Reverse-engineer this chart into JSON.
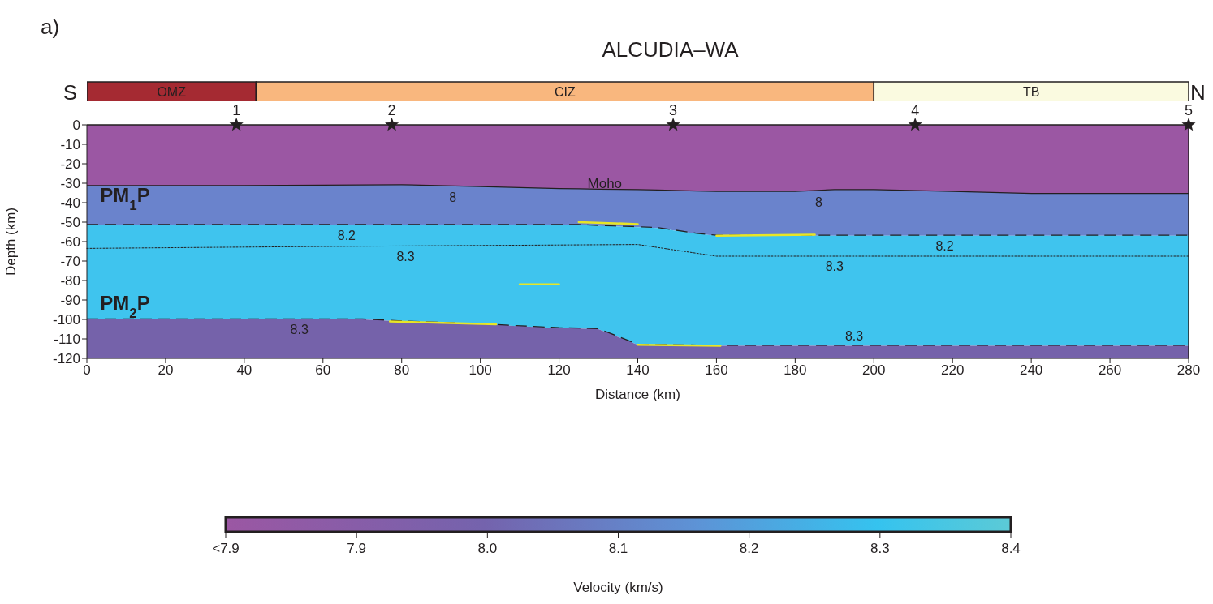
{
  "chart_data": [
    {
      "type": "bar",
      "orientation": "horizontal",
      "stacked": true,
      "title": "ALCUDIA–WA",
      "categories": [
        null
      ],
      "xlim": [
        0,
        280
      ],
      "tick_labels": false,
      "series": [
        {
          "name": "OMZ",
          "color": "#a52a32",
          "values": [
            43
          ]
        },
        {
          "name": "CIZ",
          "color": "#f9b77e",
          "values": [
            157
          ]
        },
        {
          "name": "TB",
          "color": "#fafae0",
          "values": [
            80
          ]
        }
      ],
      "annotations": [
        "a)",
        "S",
        "N"
      ]
    },
    {
      "type": "line",
      "xlabel": "Distance (km)",
      "ylabel": "Depth (km)",
      "clabel": "Velocity (km/s)",
      "xlim": [
        0,
        280
      ],
      "xticks": [
        0,
        20,
        40,
        60,
        80,
        100,
        120,
        140,
        160,
        180,
        200,
        220,
        240,
        260,
        280
      ],
      "ylim": [
        -120,
        0
      ],
      "yticks": [
        0,
        -10,
        -20,
        -30,
        -40,
        -50,
        -60,
        -70,
        -80,
        -90,
        -100,
        -110,
        -120
      ],
      "clim": [
        7.8,
        8.4
      ],
      "cticks": [
        {
          "value": 7.8,
          "label": "<7.9"
        },
        7.9,
        {
          "value": 8,
          "label": "8.0"
        },
        8.1,
        8.2,
        8.3,
        8.4
      ],
      "stacked": true,
      "series": [
        {
          "type": "area",
          "color": "#9b57a3",
          "line_style": "solid",
          "x": [
            0,
            40,
            70,
            80,
            100,
            120,
            125,
            130,
            140,
            145,
            155,
            160,
            180,
            190,
            200,
            220,
            240,
            260,
            280
          ],
          "values": [
            -31.5,
            -31.5,
            -31.1,
            -31,
            -32,
            -33,
            -33.1,
            -33.3,
            -33.5,
            -33.8,
            -34.3,
            -34.5,
            -34.5,
            -33.5,
            -33.5,
            -34.5,
            -35.5,
            -35.5,
            -35.5
          ]
        },
        {
          "type": "area",
          "color": "#6a83cc",
          "line_style": "dashed",
          "x": [
            0,
            40,
            70,
            80,
            100,
            120,
            125,
            130,
            140,
            145,
            155,
            160,
            180,
            190,
            200,
            220,
            240,
            260,
            280
          ],
          "values": [
            -20,
            -20,
            -20.4,
            -20.5,
            -19.5,
            -18.5,
            -18.4,
            -18.7,
            -19.1,
            -19.2,
            -21.7,
            -22.5,
            -22.5,
            -23.5,
            -23.5,
            -22.5,
            -21.5,
            -21.5,
            -21.5
          ]
        },
        {
          "type": "area",
          "color": "#3fc4ee",
          "line_style": "dashed",
          "x": [
            0,
            40,
            70,
            80,
            100,
            120,
            125,
            130,
            140,
            145,
            155,
            160,
            180,
            190,
            200,
            220,
            240,
            260,
            280
          ],
          "values": [
            -48.5,
            -48.5,
            -48.5,
            -49.5,
            -51,
            -53,
            -53.2,
            -53,
            -60.4,
            -60.1,
            -57.4,
            -56.5,
            -56.5,
            -56.5,
            -56.5,
            -56.5,
            -56.5,
            -56.5,
            -56.5
          ]
        },
        {
          "type": "area",
          "color": "#7562aa",
          "x": [
            0,
            40,
            70,
            80,
            100,
            120,
            125,
            130,
            140,
            145,
            155,
            160,
            180,
            190,
            200,
            220,
            240,
            260,
            280
          ],
          "values": [
            -20,
            -20,
            -20,
            -19,
            -17.5,
            -15.5,
            -15.3,
            -15,
            -7,
            -6.9,
            -6.6,
            -6.5,
            -6.5,
            -6.5,
            -6.5,
            -6.5,
            -6.5,
            -6.5,
            -6.5
          ]
        },
        {
          "type": "line",
          "color": "#231f20",
          "line_style": "dotted",
          "x": [
            0,
            60,
            140,
            160,
            280
          ],
          "values": [
            -63.5,
            -62.5,
            -61.5,
            -67.5,
            -67.5
          ]
        },
        {
          "type": "line",
          "color": "#e8e626",
          "line_style": "solid",
          "x": [
            125,
            140
          ],
          "values": [
            -50,
            -51
          ]
        },
        {
          "type": "line",
          "color": "#e8e626",
          "line_style": "solid",
          "x": [
            160,
            185
          ],
          "values": [
            -57,
            -56.5
          ]
        },
        {
          "type": "line",
          "color": "#e8e626",
          "line_style": "solid",
          "x": [
            110,
            120
          ],
          "values": [
            -82,
            -82
          ]
        },
        {
          "type": "line",
          "color": "#e8e626",
          "line_style": "solid",
          "x": [
            77,
            104
          ],
          "values": [
            -101,
            -102.5
          ]
        },
        {
          "type": "line",
          "color": "#e8e626",
          "line_style": "solid",
          "x": [
            140,
            161
          ],
          "values": [
            -113,
            -113.5
          ]
        },
        {
          "type": "scatter",
          "color": "#231f20",
          "marker": "star",
          "x": [
            38,
            77.5,
            149,
            210.5,
            280
          ],
          "values": [
            0,
            0,
            0,
            0,
            0
          ]
        }
      ],
      "annotations": [
        "Moho",
        "PM$_{1}$P",
        "PM$_{2}$P",
        {
          "text": "1",
          "x": 38,
          "y": 0
        },
        {
          "text": "2",
          "x": 77.5,
          "y": 0
        },
        {
          "text": "3",
          "x": 149,
          "y": 0
        },
        {
          "text": "4",
          "x": 210.5,
          "y": 0
        },
        {
          "text": "5",
          "x": 280,
          "y": 0
        },
        {
          "text": "8",
          "x": 93,
          "y": -32
        },
        {
          "text": "8",
          "x": 186,
          "y": -34.5
        },
        {
          "text": "8.2",
          "x": 66,
          "y": -51.5
        },
        {
          "text": "8.2",
          "x": 218,
          "y": -57
        },
        {
          "text": "8.3",
          "x": 81,
          "y": -62.5
        },
        {
          "text": "8.3",
          "x": 190,
          "y": -67.5
        },
        {
          "text": "8.3",
          "x": 54,
          "y": -100
        },
        {
          "text": "8.3",
          "x": 195,
          "y": -113.5
        }
      ]
    }
  ]
}
